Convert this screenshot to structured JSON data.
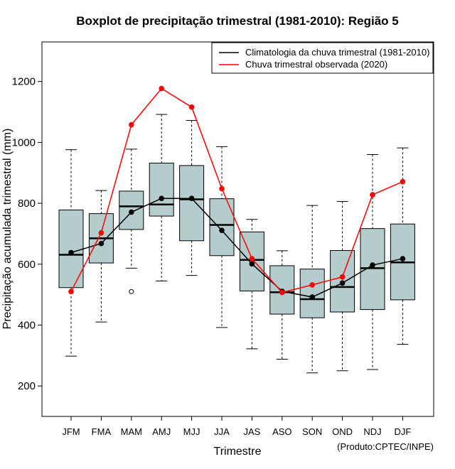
{
  "chart_data": {
    "type": "boxplot",
    "title": "Boxplot de precipitação trimestral (1981-2010): Região 5",
    "xlabel": "Trimestre",
    "ylabel": "Precipitação acumulada trimestral (mm)",
    "ylim": [
      100,
      1330
    ],
    "yticks": [
      200,
      400,
      600,
      800,
      1000,
      1200
    ],
    "categories": [
      "JFM",
      "FMA",
      "MAM",
      "AMJ",
      "MJJ",
      "JJA",
      "JAS",
      "ASO",
      "SON",
      "OND",
      "NDJ",
      "DJF"
    ],
    "boxes": [
      {
        "whisker_low": 298,
        "q1": 523,
        "median": 631,
        "q3": 778,
        "whisker_high": 976,
        "outliers": []
      },
      {
        "whisker_low": 410,
        "q1": 604,
        "median": 685,
        "q3": 766,
        "whisker_high": 842,
        "outliers": []
      },
      {
        "whisker_low": 587,
        "q1": 714,
        "median": 790,
        "q3": 840,
        "whisker_high": 978,
        "outliers": [
          510
        ]
      },
      {
        "whisker_low": 545,
        "q1": 758,
        "median": 796,
        "q3": 932,
        "whisker_high": 1092,
        "outliers": []
      },
      {
        "whisker_low": 563,
        "q1": 677,
        "median": 813,
        "q3": 924,
        "whisker_high": 1072,
        "outliers": []
      },
      {
        "whisker_low": 392,
        "q1": 628,
        "median": 729,
        "q3": 815,
        "whisker_high": 986,
        "outliers": []
      },
      {
        "whisker_low": 322,
        "q1": 512,
        "median": 614,
        "q3": 706,
        "whisker_high": 747,
        "outliers": []
      },
      {
        "whisker_low": 288,
        "q1": 436,
        "median": 508,
        "q3": 595,
        "whisker_high": 644,
        "outliers": []
      },
      {
        "whisker_low": 243,
        "q1": 424,
        "median": 485,
        "q3": 584,
        "whisker_high": 793,
        "outliers": []
      },
      {
        "whisker_low": 250,
        "q1": 443,
        "median": 525,
        "q3": 645,
        "whisker_high": 806,
        "outliers": []
      },
      {
        "whisker_low": 254,
        "q1": 451,
        "median": 587,
        "q3": 717,
        "whisker_high": 960,
        "outliers": []
      },
      {
        "whisker_low": 337,
        "q1": 483,
        "median": 606,
        "q3": 732,
        "whisker_high": 982,
        "outliers": []
      }
    ],
    "series": [
      {
        "name": "Climatologia da chuva trimestral (1981-2010)",
        "color": "#000000",
        "values": [
          638,
          668,
          771,
          816,
          816,
          711,
          601,
          511,
          492,
          538,
          597,
          618
        ]
      },
      {
        "name": "Chuva trimestral observada (2020)",
        "color": "#ff0000",
        "values": [
          510,
          703,
          1058,
          1177,
          1116,
          848,
          618,
          507,
          532,
          558,
          828,
          871
        ]
      }
    ],
    "legend_position": "top-right",
    "box_fill": "#b4cccc",
    "credit": "(Produto:CPTEC/INPE)"
  }
}
